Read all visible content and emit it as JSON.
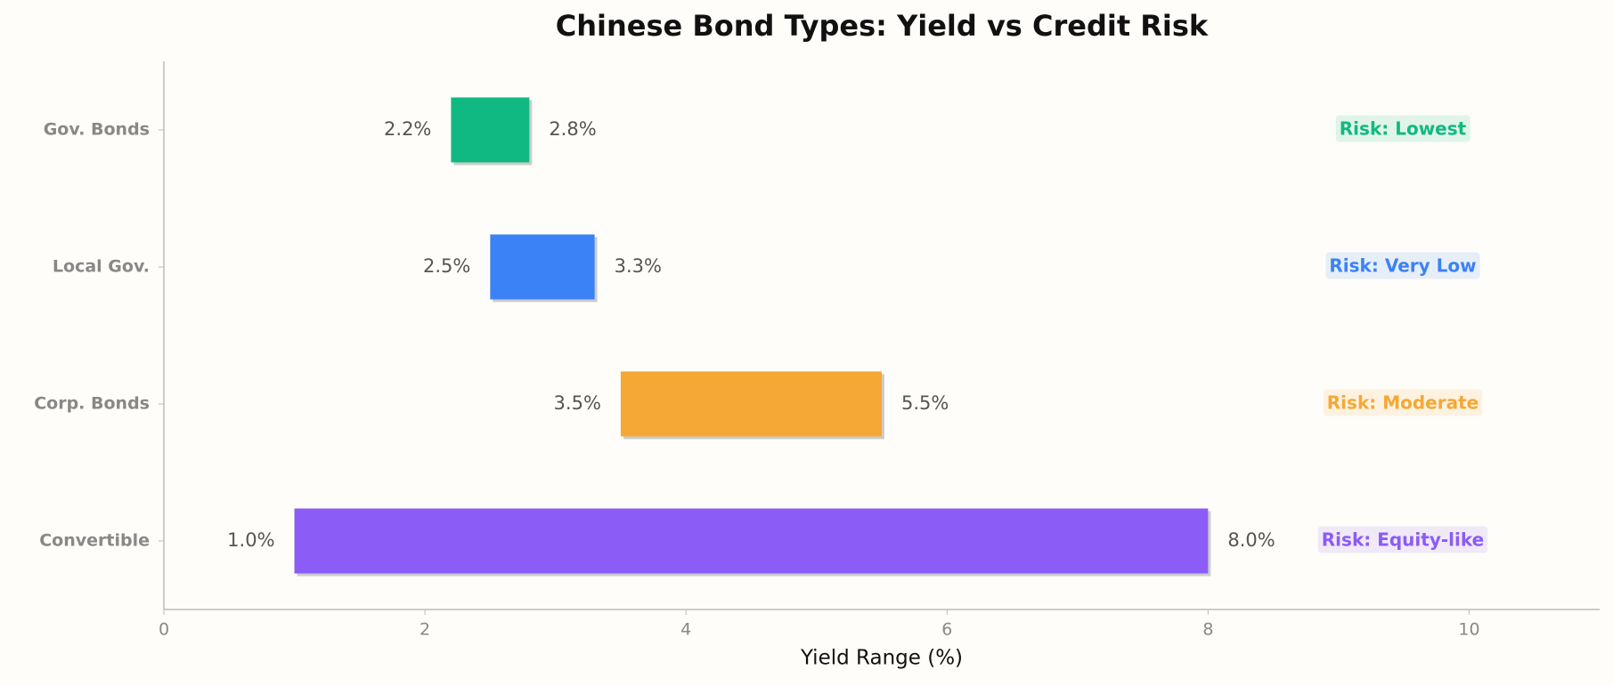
{
  "chart_data": {
    "type": "range_bar",
    "title": "Chinese Bond Types: Yield vs Credit Risk",
    "x_label": "Yield Range (%)",
    "categories": [
      "Gov. Bonds",
      "Local Gov.",
      "Corp. Bonds",
      "Convertible"
    ],
    "low": {
      "values": [
        2.2,
        2.5,
        3.5,
        1.0
      ],
      "value_labels": [
        "2.2%",
        "2.5%",
        "3.5%",
        "1.0%"
      ]
    },
    "high": {
      "values": [
        2.8,
        3.3,
        5.5,
        8.0
      ],
      "value_labels": [
        "2.8%",
        "3.3%",
        "5.5%",
        "8.0%"
      ]
    },
    "colors": [
      "#10b981",
      "#3b82f6",
      "#f5a835",
      "#8b5cf6"
    ],
    "annotations": [
      "Risk: Lowest",
      "Risk: Very Low",
      "Risk: Moderate",
      "Risk: Equity-like"
    ],
    "xlim": [
      0,
      11
    ],
    "xticks": [
      0,
      2,
      4,
      6,
      8,
      10
    ],
    "grid": false
  }
}
